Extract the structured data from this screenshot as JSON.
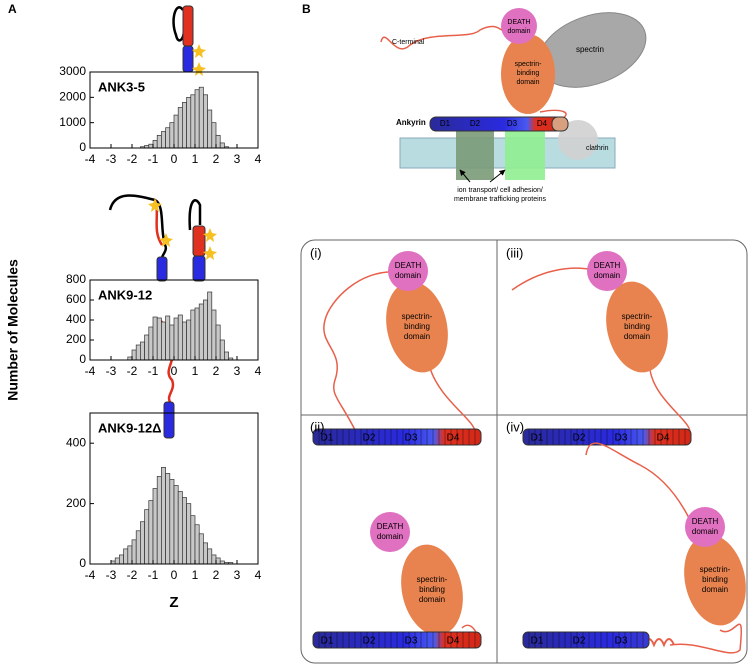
{
  "panel_labels": [
    "A",
    "B"
  ],
  "figure": {
    "y_label": "Number of Molecules",
    "x_label": "Z"
  },
  "chart_data": [
    {
      "type": "histogram",
      "title": "ANK3-5",
      "bins": [
        -1.6,
        -1.4,
        -1.2,
        -1.0,
        -0.8,
        -0.6,
        -0.4,
        -0.2,
        0.0,
        0.2,
        0.4,
        0.6,
        0.8,
        1.0,
        1.2,
        1.4,
        1.6,
        1.8,
        2.0,
        2.2,
        2.4,
        2.6
      ],
      "values": [
        50,
        100,
        150,
        300,
        500,
        650,
        800,
        1000,
        1300,
        1600,
        1800,
        2000,
        2100,
        2300,
        2400,
        2100,
        1500,
        1000,
        500,
        200,
        50
      ],
      "color": "#c8c8c8",
      "xlim": [
        -4,
        4
      ],
      "xticks": [
        -4,
        -3,
        -2,
        -1,
        0,
        1,
        2,
        3,
        4
      ],
      "ylim": [
        0,
        3000
      ],
      "yticks": [
        0,
        1000,
        2000,
        3000
      ]
    },
    {
      "type": "histogram",
      "title": "ANK9-12",
      "bins": [
        -2.2,
        -2.0,
        -1.8,
        -1.6,
        -1.4,
        -1.2,
        -1.0,
        -0.8,
        -0.6,
        -0.4,
        -0.2,
        0.0,
        0.2,
        0.4,
        0.6,
        0.8,
        1.0,
        1.2,
        1.4,
        1.6,
        1.8,
        2.0,
        2.2,
        2.4,
        2.6,
        2.8
      ],
      "values": [
        30,
        100,
        150,
        180,
        250,
        330,
        430,
        420,
        380,
        440,
        350,
        420,
        450,
        380,
        400,
        500,
        520,
        560,
        600,
        680,
        500,
        350,
        200,
        80,
        20
      ],
      "color": "#c8c8c8",
      "xlim": [
        -4,
        4
      ],
      "xticks": [
        -4,
        -3,
        -2,
        -1,
        0,
        1,
        2,
        3,
        4
      ],
      "ylim": [
        0,
        800
      ],
      "yticks": [
        0,
        200,
        400,
        600,
        800
      ]
    },
    {
      "type": "histogram",
      "title": "ANK9-12Δ",
      "bins": [
        -3.0,
        -2.8,
        -2.6,
        -2.4,
        -2.2,
        -2.0,
        -1.8,
        -1.6,
        -1.4,
        -1.2,
        -1.0,
        -0.8,
        -0.6,
        -0.4,
        -0.2,
        0.0,
        0.2,
        0.4,
        0.6,
        0.8,
        1.0,
        1.2,
        1.4,
        1.6,
        1.8,
        2.0,
        2.2,
        2.4,
        2.6,
        2.8
      ],
      "values": [
        10,
        20,
        30,
        50,
        60,
        80,
        110,
        140,
        180,
        210,
        250,
        290,
        320,
        300,
        280,
        260,
        240,
        220,
        200,
        160,
        130,
        100,
        70,
        50,
        30,
        20,
        10,
        5,
        5
      ],
      "color": "#c8c8c8",
      "xlim": [
        -4,
        4
      ],
      "xticks": [
        -4,
        -3,
        -2,
        -1,
        0,
        1,
        2,
        3,
        4
      ],
      "ylim": [
        0,
        500
      ],
      "yticks": [
        0,
        200,
        400
      ]
    }
  ],
  "schematic": {
    "c_terminal": "C-terminal",
    "death": [
      "DEATH",
      "domain"
    ],
    "binding": [
      "spectrin-",
      "binding",
      "domain"
    ],
    "spectrin": "spectrin",
    "ankyrin": "Ankyrin",
    "repeats": [
      "D1",
      "D2",
      "D3",
      "D4"
    ],
    "clathrin": "clathrin",
    "membrane_proteins": [
      "ion transport/ cell adhesion/",
      "membrane trafficking proteins"
    ]
  },
  "states": [
    {
      "label": "(i)",
      "death": [
        "DEATH",
        "domain"
      ],
      "binding": [
        "spectrin-",
        "binding",
        "domain"
      ],
      "repeats": [
        "D1",
        "D2",
        "D3",
        "D4"
      ]
    },
    {
      "label": "(iii)",
      "death": [
        "DEATH",
        "domain"
      ],
      "binding": [
        "spectrin-",
        "binding",
        "domain"
      ],
      "repeats": [
        "D1",
        "D2",
        "D3",
        "D4"
      ]
    },
    {
      "label": "(ii)",
      "death": [
        "DEATH",
        "domain"
      ],
      "binding": [
        "spectrin-",
        "binding",
        "domain"
      ],
      "repeats": [
        "D1",
        "D2",
        "D3",
        "D4"
      ]
    },
    {
      "label": "(iv)",
      "death": [
        "DEATH",
        "domain"
      ],
      "binding": [
        "spectrin-",
        "binding",
        "domain"
      ],
      "repeats": [
        "D1",
        "D2",
        "D3"
      ]
    }
  ]
}
